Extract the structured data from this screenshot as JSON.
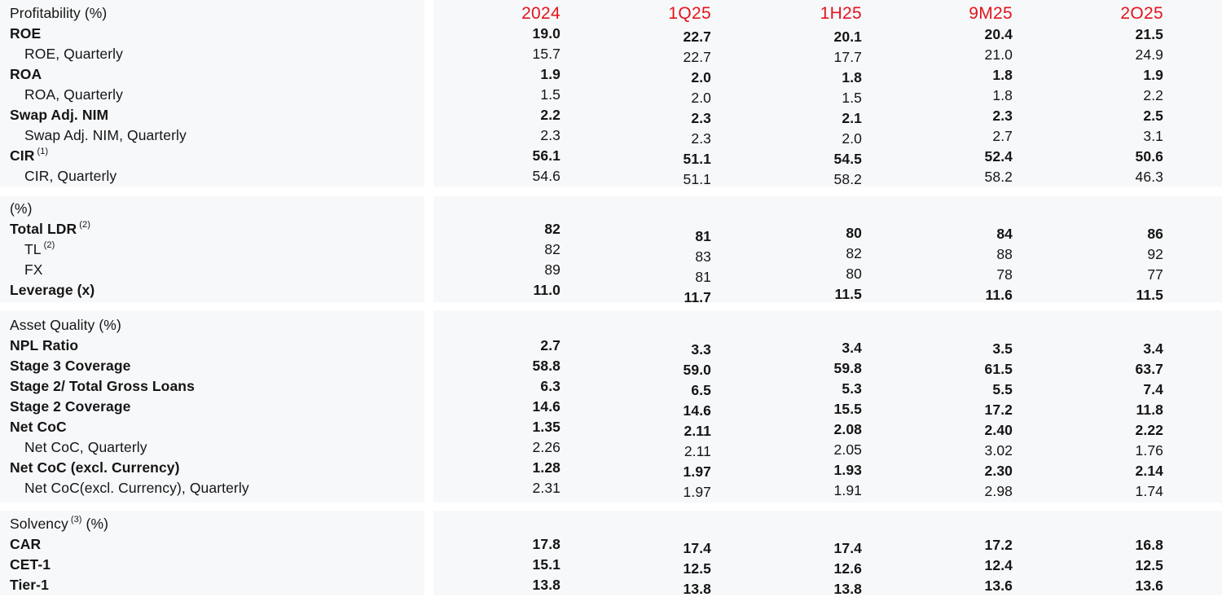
{
  "colors": {
    "header_red": "#E3141C",
    "text_ink": "#151515",
    "panel_bg": "#F7F8FA",
    "page_bg": "#FFFFFF"
  },
  "chart_data": {
    "type": "table",
    "columns": [
      "2024",
      "1Q25",
      "1H25",
      "9M25",
      "2O25"
    ],
    "sections": [
      {
        "title": {
          "text": "Profitability (%)",
          "sup": "",
          "suffix": ""
        },
        "rows": [
          {
            "label": "ROE",
            "sup": "",
            "indent": false,
            "bold": true,
            "values": [
              "19.0",
              "22.7",
              "20.1",
              "20.4",
              "21.5"
            ]
          },
          {
            "label": "ROE, Quarterly",
            "sup": "",
            "indent": true,
            "bold": false,
            "values": [
              "15.7",
              "22.7",
              "17.7",
              "21.0",
              "24.9"
            ]
          },
          {
            "label": "ROA",
            "sup": "",
            "indent": false,
            "bold": true,
            "values": [
              "1.9",
              "2.0",
              "1.8",
              "1.8",
              "1.9"
            ]
          },
          {
            "label": "ROA, Quarterly",
            "sup": "",
            "indent": true,
            "bold": false,
            "values": [
              "1.5",
              "2.0",
              "1.5",
              "1.8",
              "2.2"
            ]
          },
          {
            "label": "Swap Adj. NIM",
            "sup": "",
            "indent": false,
            "bold": true,
            "values": [
              "2.2",
              "2.3",
              "2.1",
              "2.3",
              "2.5"
            ]
          },
          {
            "label": "Swap Adj. NIM, Quarterly",
            "sup": "",
            "indent": true,
            "bold": false,
            "values": [
              "2.3",
              "2.3",
              "2.0",
              "2.7",
              "3.1"
            ]
          },
          {
            "label": "CIR",
            "sup": "(1)",
            "indent": false,
            "bold": true,
            "values": [
              "56.1",
              "51.1",
              "54.5",
              "52.4",
              "50.6"
            ]
          },
          {
            "label": "CIR, Quarterly",
            "sup": "",
            "indent": true,
            "bold": false,
            "values": [
              "54.6",
              "51.1",
              "58.2",
              "58.2",
              "46.3"
            ]
          }
        ]
      },
      {
        "title": {
          "text": "(%)",
          "sup": "",
          "suffix": ""
        },
        "rows": [
          {
            "label": "Total LDR",
            "sup": "(2)",
            "indent": false,
            "bold": true,
            "values": [
              "82",
              "81",
              "80",
              "84",
              "86"
            ]
          },
          {
            "label": "TL",
            "sup": "(2)",
            "indent": true,
            "bold": false,
            "values": [
              "82",
              "83",
              "82",
              "88",
              "92"
            ]
          },
          {
            "label": "FX",
            "sup": "",
            "indent": true,
            "bold": false,
            "values": [
              "89",
              "81",
              "80",
              "78",
              "77"
            ]
          },
          {
            "label": "Leverage (x)",
            "sup": "",
            "indent": false,
            "bold": true,
            "values": [
              "11.0",
              "11.7",
              "11.5",
              "11.6",
              "11.5"
            ]
          }
        ]
      },
      {
        "title": {
          "text": "Asset Quality (%)",
          "sup": "",
          "suffix": ""
        },
        "rows": [
          {
            "label": "NPL Ratio",
            "sup": "",
            "indent": false,
            "bold": true,
            "values": [
              "2.7",
              "3.3",
              "3.4",
              "3.5",
              "3.4"
            ]
          },
          {
            "label": "Stage 3 Coverage",
            "sup": "",
            "indent": false,
            "bold": true,
            "values": [
              "58.8",
              "59.0",
              "59.8",
              "61.5",
              "63.7"
            ]
          },
          {
            "label": "Stage 2/ Total Gross Loans",
            "sup": "",
            "indent": false,
            "bold": true,
            "values": [
              "6.3",
              "6.5",
              "5.3",
              "5.5",
              "7.4"
            ]
          },
          {
            "label": "Stage 2 Coverage",
            "sup": "",
            "indent": false,
            "bold": true,
            "values": [
              "14.6",
              "14.6",
              "15.5",
              "17.2",
              "11.8"
            ]
          },
          {
            "label": "Net CoC",
            "sup": "",
            "indent": false,
            "bold": true,
            "values": [
              "1.35",
              "2.11",
              "2.08",
              "2.40",
              "2.22"
            ]
          },
          {
            "label": "Net CoC, Quarterly",
            "sup": "",
            "indent": true,
            "bold": false,
            "values": [
              "2.26",
              "2.11",
              "2.05",
              "3.02",
              "1.76"
            ]
          },
          {
            "label": "Net CoC (excl. Currency)",
            "sup": "",
            "indent": false,
            "bold": true,
            "values": [
              "1.28",
              "1.97",
              "1.93",
              "2.30",
              "2.14"
            ]
          },
          {
            "label": "Net CoC(excl. Currency), Quarterly",
            "sup": "",
            "indent": true,
            "bold": false,
            "values": [
              "2.31",
              "1.97",
              "1.91",
              "2.98",
              "1.74"
            ]
          }
        ]
      },
      {
        "title": {
          "text": "Solvency",
          "sup": "(3)",
          "suffix": " (%)"
        },
        "rows": [
          {
            "label": "CAR",
            "sup": "",
            "indent": false,
            "bold": true,
            "values": [
              "17.8",
              "17.4",
              "17.4",
              "17.2",
              "16.8"
            ]
          },
          {
            "label": "CET-1",
            "sup": "",
            "indent": false,
            "bold": true,
            "values": [
              "15.1",
              "12.5",
              "12.6",
              "12.4",
              "12.5"
            ]
          },
          {
            "label": "Tier-1",
            "sup": "",
            "indent": false,
            "bold": true,
            "values": [
              "13.8",
              "13.8",
              "13.8",
              "13.6",
              "13.6"
            ]
          }
        ]
      }
    ]
  }
}
